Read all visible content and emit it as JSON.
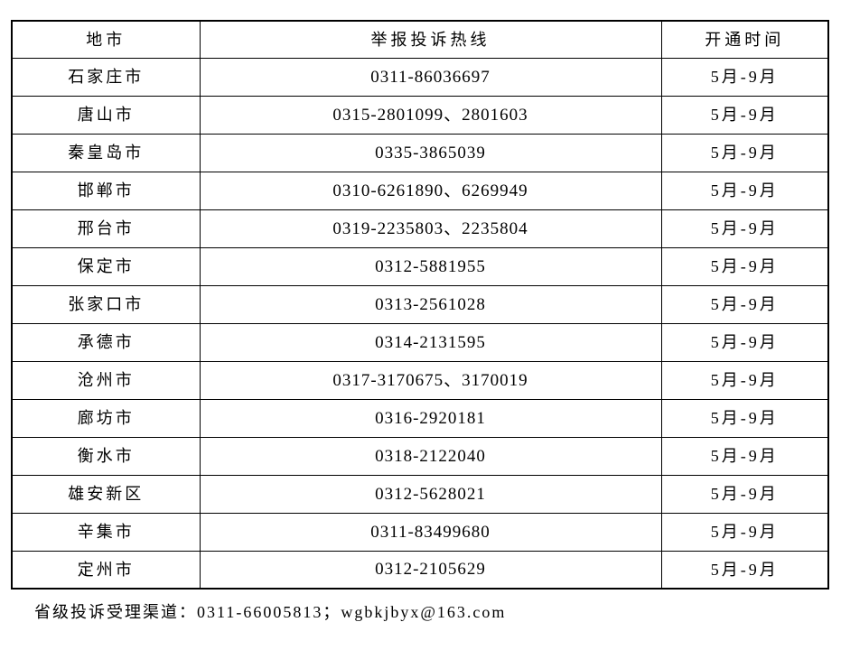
{
  "table": {
    "headers": [
      "地市",
      "举报投诉热线",
      "开通时间"
    ],
    "rows": [
      {
        "city": "石家庄市",
        "hotline": "0311-86036697",
        "period": "5月-9月"
      },
      {
        "city": "唐山市",
        "hotline": "0315-2801099、2801603",
        "period": "5月-9月"
      },
      {
        "city": "秦皇岛市",
        "hotline": "0335-3865039",
        "period": "5月-9月"
      },
      {
        "city": "邯郸市",
        "hotline": "0310-6261890、6269949",
        "period": "5月-9月"
      },
      {
        "city": "邢台市",
        "hotline": "0319-2235803、2235804",
        "period": "5月-9月"
      },
      {
        "city": "保定市",
        "hotline": "0312-5881955",
        "period": "5月-9月"
      },
      {
        "city": "张家口市",
        "hotline": "0313-2561028",
        "period": "5月-9月"
      },
      {
        "city": "承德市",
        "hotline": "0314-2131595",
        "period": "5月-9月"
      },
      {
        "city": "沧州市",
        "hotline": "0317-3170675、3170019",
        "period": "5月-9月"
      },
      {
        "city": "廊坊市",
        "hotline": "0316-2920181",
        "period": "5月-9月"
      },
      {
        "city": "衡水市",
        "hotline": "0318-2122040",
        "period": "5月-9月"
      },
      {
        "city": "雄安新区",
        "hotline": "0312-5628021",
        "period": "5月-9月"
      },
      {
        "city": "辛集市",
        "hotline": "0311-83499680",
        "period": "5月-9月"
      },
      {
        "city": "定州市",
        "hotline": "0312-2105629",
        "period": "5月-9月"
      }
    ]
  },
  "footer": {
    "text": "省级投诉受理渠道：0311-66005813；wgbkjbyx@163.com"
  }
}
